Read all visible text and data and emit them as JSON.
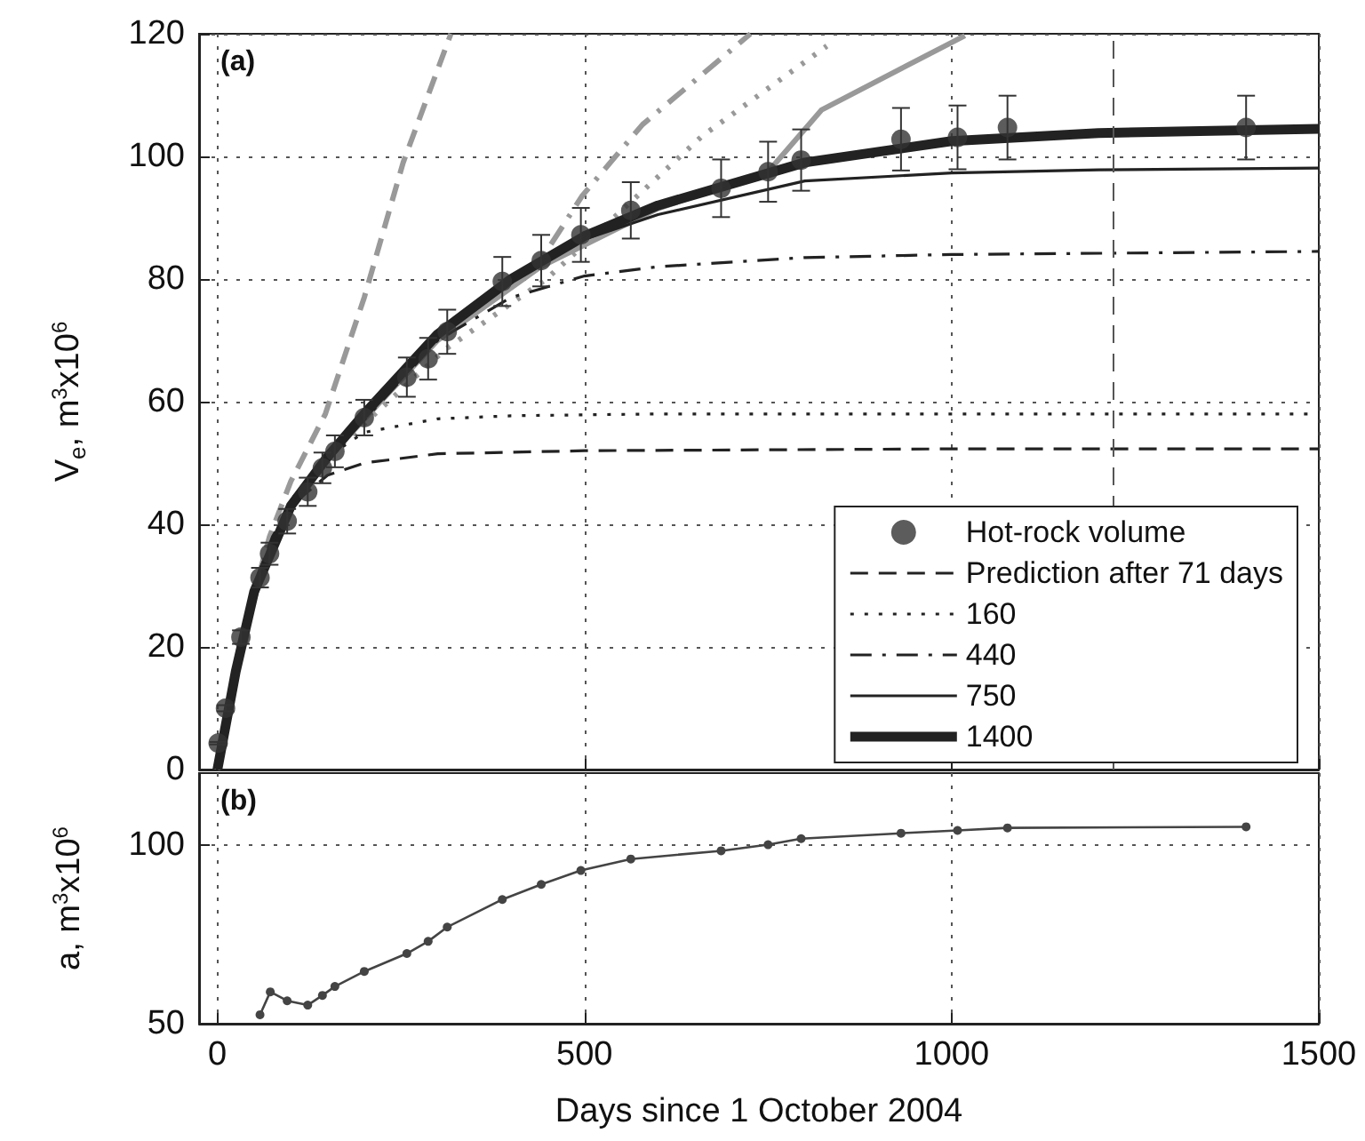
{
  "chart_data": [
    {
      "type": "line",
      "ylabel": "V$_{e}$, m$^{3}$x10$^{6}$",
      "annotations": [
        "(a)"
      ],
      "xlim": [
        -25,
        1500
      ],
      "xticks": [
        0,
        500,
        1000,
        1500
      ],
      "ylim": [
        0,
        120
      ],
      "yticks": [
        0,
        20,
        40,
        60,
        80,
        100,
        120
      ],
      "tick_labels": "y",
      "grid": true,
      "legend": "bottom right",
      "ref_lines": [
        {
          "axis": "x",
          "value": 1220,
          "color": "#555555",
          "line_style": "dashed"
        }
      ],
      "series": [
        {
          "name": "Hot-rock volume",
          "type": "scatter",
          "color": "#333333",
          "marker": "circle",
          "x": [
            1,
            11,
            32,
            58,
            71,
            95,
            123,
            143,
            160,
            200,
            258,
            287,
            313,
            388,
            441,
            495,
            563,
            686,
            750,
            795,
            931,
            1008,
            1076,
            1401
          ],
          "values": [
            4.3,
            10,
            21.6,
            31.3,
            35.2,
            40.5,
            45.3,
            49.2,
            51.9,
            57.4,
            64,
            67,
            71.4,
            79.6,
            83,
            87.2,
            91.2,
            94.8,
            97.5,
            99.4,
            102.8,
            103.1,
            104.7,
            104.7
          ],
          "errors": [
            0.2,
            0.5,
            1.1,
            1.6,
            1.8,
            2,
            2.3,
            2.5,
            2.6,
            2.9,
            3.2,
            3.4,
            3.6,
            4,
            4.2,
            4.4,
            4.6,
            4.7,
            4.9,
            5,
            5.1,
            5.2,
            5.2,
            5.2
          ]
        },
        {
          "color": "#999999",
          "line_style": "dashed",
          "x": [
            0,
            30,
            71,
            100,
            147,
            200,
            253,
            318
          ],
          "values": [
            0,
            20,
            38,
            47,
            58,
            77,
            99,
            120
          ]
        },
        {
          "color": "#999999",
          "line_style": "dotted",
          "x": [
            0,
            30,
            71,
            100,
            160,
            310,
            448,
            529,
            660,
            830
          ],
          "values": [
            0,
            20,
            36,
            43,
            52,
            68.5,
            80,
            88.8,
            103.3,
            118
          ]
        },
        {
          "color": "#999999",
          "line_style": "dashdot",
          "x": [
            0,
            30,
            71,
            100,
            160,
            300,
            440,
            497,
            579,
            726
          ],
          "values": [
            0,
            20,
            36,
            43,
            52,
            71,
            83,
            93.6,
            105.2,
            120
          ]
        },
        {
          "color": "#999999",
          "line_style": "solid",
          "x": [
            0,
            30,
            71,
            100,
            160,
            300,
            440,
            600,
            750,
            823,
            1018
          ],
          "values": [
            0,
            20,
            36,
            43,
            52,
            70,
            82,
            91.5,
            97.5,
            107.6,
            119.7
          ]
        },
        {
          "name": "Prediction after 71 days",
          "color": "#222222",
          "line_style": "dashed",
          "x": [
            0,
            25,
            50,
            75,
            100,
            150,
            200,
            300,
            500,
            1000,
            1500
          ],
          "values": [
            0,
            16,
            30,
            38,
            43,
            48,
            50,
            51.5,
            52,
            52.3,
            52.3
          ]
        },
        {
          "name": "160",
          "color": "#222222",
          "line_style": "dotted",
          "x": [
            0,
            25,
            50,
            75,
            100,
            150,
            200,
            300,
            400,
            600,
            1000,
            1500
          ],
          "values": [
            0,
            16,
            29,
            36,
            44,
            51,
            55,
            57.2,
            57.7,
            58,
            58,
            58
          ]
        },
        {
          "name": "440",
          "color": "#222222",
          "line_style": "dashdot",
          "x": [
            0,
            25,
            50,
            75,
            100,
            150,
            200,
            300,
            400,
            500,
            600,
            800,
            1000,
            1500
          ],
          "values": [
            0,
            16,
            29,
            36,
            43,
            51,
            57,
            70,
            77,
            80.5,
            82,
            83.5,
            84,
            84.5
          ]
        },
        {
          "name": "750",
          "color": "#222222",
          "line_style": "solid",
          "x": [
            0,
            25,
            50,
            75,
            100,
            150,
            200,
            300,
            400,
            500,
            600,
            800,
            1000,
            1200,
            1500
          ],
          "values": [
            0,
            16,
            29,
            36,
            43,
            51,
            58,
            71,
            80,
            86.5,
            90.5,
            96,
            97.3,
            97.8,
            98.1
          ]
        },
        {
          "name": "1400",
          "color": "#222222",
          "line_style": "solid",
          "x": [
            0,
            25,
            50,
            75,
            100,
            150,
            200,
            300,
            400,
            500,
            600,
            800,
            1000,
            1200,
            1500
          ],
          "values": [
            0,
            16,
            29,
            36,
            43,
            51,
            58,
            71,
            80,
            87,
            92,
            99,
            102.5,
            103.8,
            104.5
          ]
        }
      ]
    },
    {
      "type": "line",
      "xlabel": "Days since 1 October 2004",
      "ylabel": "a, m$^{3}$x10$^{6}$",
      "annotations": [
        "(b)"
      ],
      "xlim": [
        -25,
        1500
      ],
      "xticks": [
        0,
        500,
        1000,
        1500
      ],
      "ylim": [
        50,
        120
      ],
      "yticks": [
        50,
        100
      ],
      "grid": true,
      "marker": "circle",
      "series": [
        {
          "color": "#444444",
          "x": [
            58,
            72,
            95,
            123,
            143,
            160,
            200,
            258,
            287,
            313,
            388,
            441,
            495,
            563,
            686,
            750,
            795,
            931,
            1008,
            1076,
            1401
          ],
          "values": [
            52.5,
            58.9,
            56.4,
            55.2,
            57.9,
            60.4,
            64.6,
            69.6,
            73,
            77,
            84.7,
            88.9,
            92.8,
            96,
            98.3,
            100,
            101.7,
            103.2,
            104,
            104.7,
            105
          ]
        }
      ]
    }
  ]
}
